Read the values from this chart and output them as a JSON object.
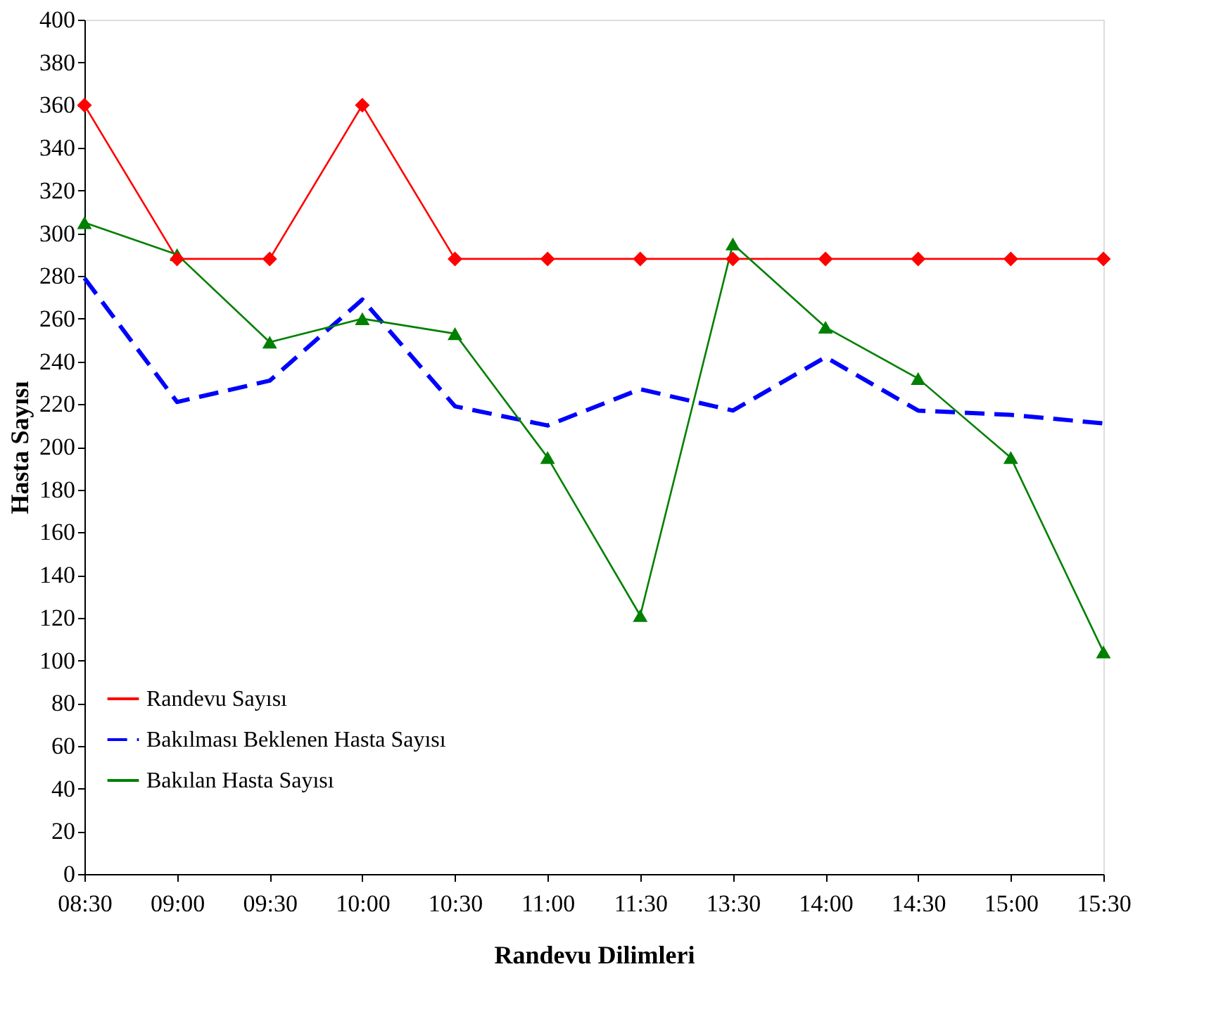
{
  "chart_data": {
    "type": "line",
    "xlabel": "Randevu Dilimleri",
    "ylabel": "Hasta Sayısı",
    "categories": [
      "08:30",
      "09:00",
      "09:30",
      "10:00",
      "10:30",
      "11:00",
      "11:30",
      "13:30",
      "14:00",
      "14:30",
      "15:00",
      "15:30"
    ],
    "ylim": [
      0,
      400
    ],
    "yticks": [
      0,
      20,
      40,
      60,
      80,
      100,
      120,
      140,
      160,
      180,
      200,
      220,
      240,
      260,
      280,
      300,
      320,
      340,
      360,
      380,
      400
    ],
    "grid": false,
    "legend": "bottom left",
    "series": [
      {
        "name": "Randevu Sayısı",
        "color": "#ff0000",
        "marker": "diamond",
        "line_style": "solid",
        "values": [
          360,
          288,
          288,
          360,
          288,
          288,
          288,
          288,
          288,
          288,
          288,
          288
        ]
      },
      {
        "name": "Bakılması Beklenen Hasta Sayısı",
        "color": "#0000ff",
        "marker": "none",
        "line_style": "dashed",
        "values": [
          279,
          221,
          231,
          269,
          219,
          210,
          227,
          217,
          242,
          217,
          215,
          211
        ]
      },
      {
        "name": "Bakılan Hasta Sayısı",
        "color": "#008000",
        "marker": "triangle",
        "line_style": "solid",
        "values": [
          305,
          290,
          249,
          260,
          253,
          195,
          121,
          295,
          256,
          232,
          195,
          104
        ]
      }
    ]
  }
}
